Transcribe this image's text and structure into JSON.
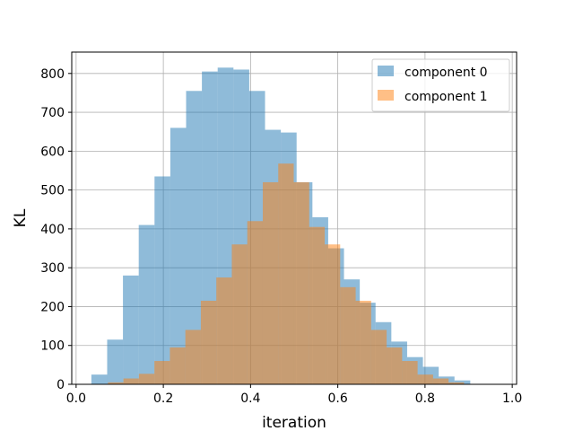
{
  "chart_data": {
    "type": "bar",
    "subtype": "overlapping-histogram",
    "title": "",
    "xlabel": "iteration",
    "ylabel": "KL",
    "xlim": [
      -0.01,
      1.01
    ],
    "ylim": [
      0,
      855
    ],
    "xticks": [
      0.0,
      0.2,
      0.4,
      0.6,
      0.8,
      1.0
    ],
    "xtick_labels": [
      "0.0",
      "0.2",
      "0.4",
      "0.6",
      "0.8",
      "1.0"
    ],
    "yticks": [
      0,
      100,
      200,
      300,
      400,
      500,
      600,
      700,
      800
    ],
    "ytick_labels": [
      "0",
      "100",
      "200",
      "300",
      "400",
      "500",
      "600",
      "700",
      "800"
    ],
    "grid": true,
    "legend_position": "top-right",
    "series": [
      {
        "name": "component 0",
        "color": "#1f77b4",
        "alpha": 0.5,
        "bin_start": 0.035,
        "bin_width": 0.0362,
        "values": [
          25,
          115,
          280,
          410,
          535,
          660,
          755,
          805,
          815,
          810,
          755,
          655,
          648,
          520,
          430,
          350,
          270,
          210,
          160,
          110,
          70,
          45,
          20,
          10
        ]
      },
      {
        "name": "component 1",
        "color": "#ff7f0e",
        "alpha": 0.5,
        "bin_start": 0.073,
        "bin_width": 0.0355,
        "values": [
          5,
          15,
          27,
          60,
          95,
          140,
          215,
          275,
          360,
          420,
          520,
          568,
          520,
          405,
          360,
          250,
          215,
          140,
          95,
          60,
          25,
          15,
          5
        ]
      }
    ]
  }
}
